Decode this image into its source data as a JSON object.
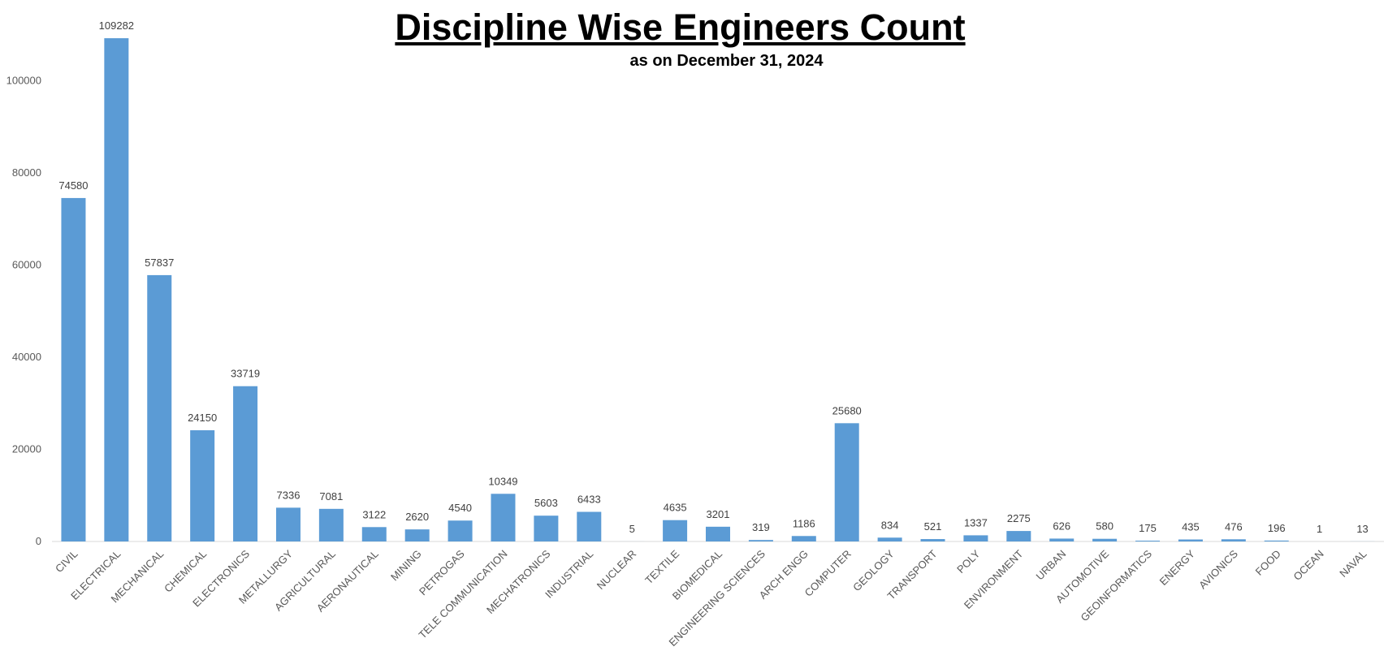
{
  "chart_data": {
    "type": "bar",
    "title": "Discipline Wise Engineers Count",
    "subtitle": "as on December 31, 2024",
    "xlabel": "",
    "ylabel": "",
    "ylim": [
      0,
      110000
    ],
    "yticks": [
      0,
      20000,
      40000,
      60000,
      80000,
      100000
    ],
    "grid": false,
    "legend": "none",
    "bar_color": "#5B9BD5",
    "categories": [
      "CIVIL",
      "ELECTRICAL",
      "MECHANICAL",
      "CHEMICAL",
      "ELECTRONICS",
      "METALLURGY",
      "AGRICULTURAL",
      "AERONAUTICAL",
      "MINING",
      "PETROGAS",
      "TELE COMMUNICATION",
      "MECHATRONICS",
      "INDUSTRIAL",
      "NUCLEAR",
      "TEXTILE",
      "BIOMEDICAL",
      "ENGINEERING SCIENCES",
      "ARCH ENGG",
      "COMPUTER",
      "GEOLOGY",
      "TRANSPORT",
      "POLY",
      "ENVIRONMENT",
      "URBAN",
      "AUTOMOTIVE",
      "GEOINFORMATICS",
      "ENERGY",
      "AVIONICS",
      "FOOD",
      "OCEAN",
      "NAVAL"
    ],
    "values": [
      74580,
      109282,
      57837,
      24150,
      33719,
      7336,
      7081,
      3122,
      2620,
      4540,
      10349,
      5603,
      6433,
      5,
      4635,
      3201,
      319,
      1186,
      25680,
      834,
      521,
      1337,
      2275,
      626,
      580,
      175,
      435,
      476,
      196,
      1,
      13
    ]
  }
}
